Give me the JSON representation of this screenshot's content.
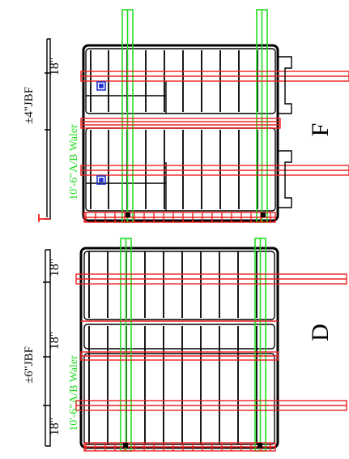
{
  "colors": {
    "frame": "#000000",
    "waler": "#22dd22",
    "brace": "#ee2222",
    "detail": "#2233cc",
    "background": "#ffffff"
  },
  "top_panel": {
    "label": "F",
    "jbf_label": "±4\"JBF",
    "waler_label": "10'-6\"A/B Waler",
    "dimension_labels": [
      "18\""
    ]
  },
  "bottom_panel": {
    "label": "D",
    "jbf_label": "±6\"JBF",
    "waler_label": "10'-6\"A/B Waler",
    "dimension_labels": [
      "18\"",
      "18\"",
      "18\""
    ]
  }
}
